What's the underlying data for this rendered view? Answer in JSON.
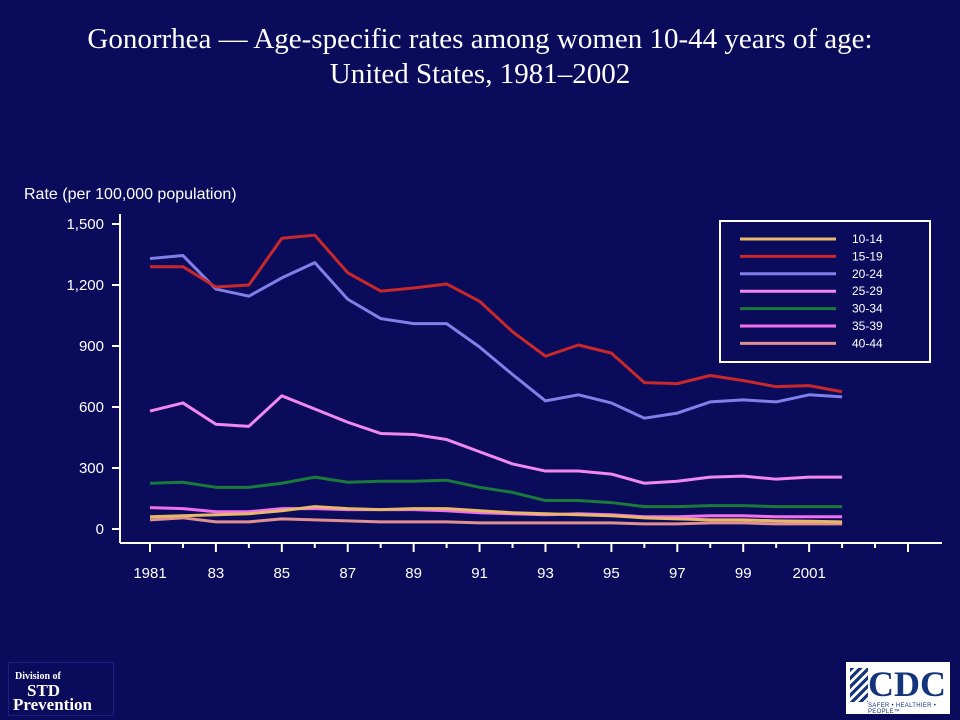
{
  "title_line1": "Gonorrhea — Age-specific rates among women 10-44 years of age:",
  "title_line2": "United States, 1981–2002",
  "logos": {
    "std_line1": "Division of",
    "std_line2": "STD",
    "std_line3": "Prevention",
    "cdc_text": "CDC",
    "cdc_tagline": "SAFER • HEALTHIER • PEOPLE™"
  },
  "chart_data": {
    "type": "line",
    "ylabel": "Rate (per 100,000 population)",
    "xlabel": "",
    "ylim": [
      0,
      1500
    ],
    "yticks": [
      0,
      300,
      600,
      900,
      1200,
      1500
    ],
    "ytick_labels": [
      "0",
      "300",
      "600",
      "900",
      "1,200",
      "1,500"
    ],
    "xlim": [
      1981,
      2004
    ],
    "xtick_positions": [
      1981,
      1983,
      1985,
      1987,
      1989,
      1991,
      1993,
      1995,
      1997,
      1999,
      2001
    ],
    "xtick_labels": [
      "1981",
      "83",
      "85",
      "87",
      "89",
      "91",
      "93",
      "95",
      "97",
      "99",
      "2001"
    ],
    "x": [
      1981,
      1982,
      1983,
      1984,
      1985,
      1986,
      1987,
      1988,
      1989,
      1990,
      1991,
      1992,
      1993,
      1994,
      1995,
      1996,
      1997,
      1998,
      1999,
      2000,
      2001,
      2002
    ],
    "legend_position": "top-right",
    "grid": false,
    "series": [
      {
        "name": "10-14",
        "color": "#e8b86a",
        "values": [
          60,
          65,
          70,
          75,
          90,
          110,
          100,
          95,
          100,
          100,
          90,
          80,
          75,
          70,
          65,
          55,
          50,
          45,
          45,
          40,
          38,
          35
        ]
      },
      {
        "name": "15-19",
        "color": "#c8282a",
        "values": [
          1290,
          1290,
          1190,
          1200,
          1430,
          1445,
          1260,
          1170,
          1185,
          1205,
          1120,
          970,
          850,
          905,
          865,
          720,
          715,
          755,
          730,
          700,
          705,
          675
        ]
      },
      {
        "name": "20-24",
        "color": "#8080e8",
        "values": [
          1330,
          1345,
          1180,
          1145,
          1235,
          1310,
          1130,
          1035,
          1010,
          1010,
          895,
          760,
          630,
          660,
          620,
          545,
          570,
          625,
          635,
          625,
          660,
          650
        ]
      },
      {
        "name": "25-29",
        "color": "#f088f0",
        "values": [
          580,
          620,
          515,
          505,
          655,
          590,
          525,
          470,
          465,
          440,
          380,
          320,
          285,
          285,
          270,
          225,
          235,
          255,
          260,
          245,
          255,
          255
        ]
      },
      {
        "name": "30-34",
        "color": "#1a7a3a",
        "values": [
          225,
          230,
          205,
          205,
          225,
          255,
          230,
          235,
          235,
          240,
          205,
          180,
          140,
          140,
          130,
          110,
          110,
          115,
          115,
          110,
          110,
          110
        ]
      },
      {
        "name": "35-39",
        "color": "#f070f0",
        "values": [
          105,
          100,
          85,
          85,
          100,
          100,
          95,
          95,
          95,
          90,
          80,
          75,
          70,
          75,
          70,
          60,
          60,
          65,
          65,
          60,
          60,
          60
        ]
      },
      {
        "name": "40-44",
        "color": "#e09090",
        "values": [
          45,
          55,
          35,
          35,
          50,
          45,
          40,
          35,
          35,
          35,
          30,
          30,
          30,
          30,
          30,
          25,
          25,
          30,
          30,
          25,
          25,
          25
        ]
      }
    ]
  }
}
